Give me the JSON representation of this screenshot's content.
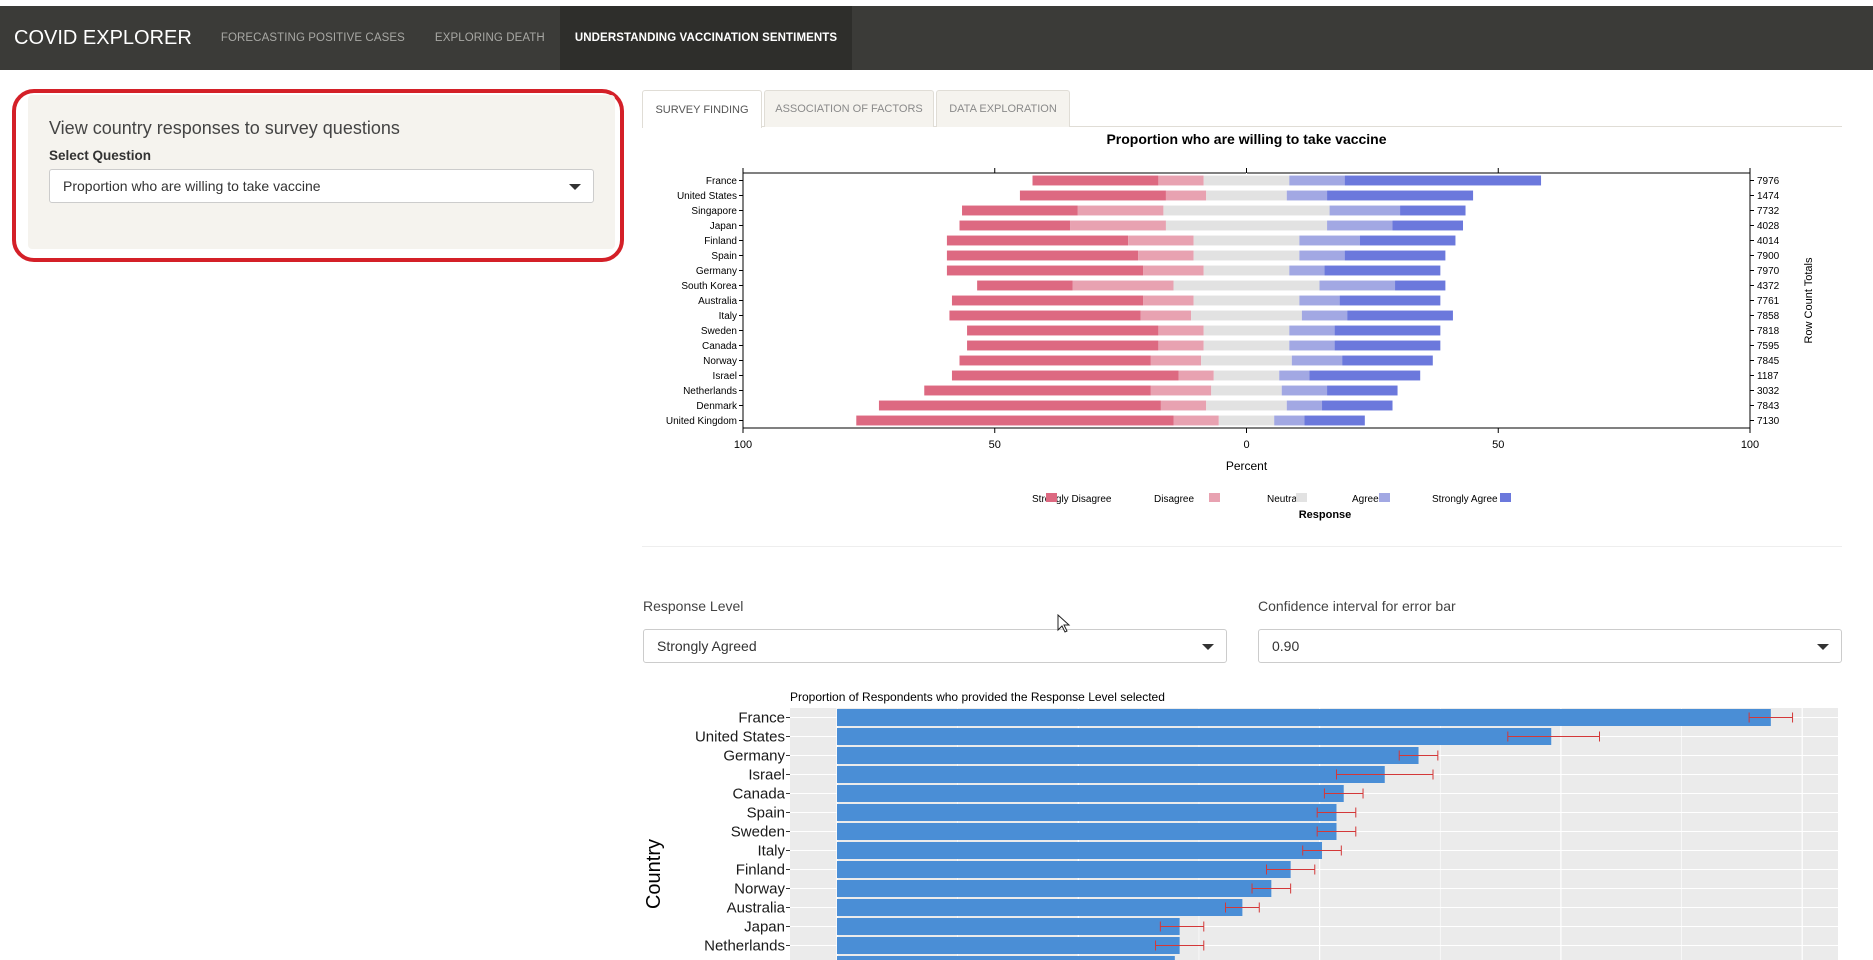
{
  "app": {
    "brand": "COVID EXPLORER",
    "nav": [
      {
        "label": "FORECASTING POSITIVE CASES"
      },
      {
        "label": "EXPLORING DEATH"
      },
      {
        "label": "UNDERSTANDING VACCINATION SENTIMENTS"
      }
    ]
  },
  "sidebar": {
    "heading": "View country responses to survey questions",
    "question_label": "Select Question",
    "question_value": "Proportion who are willing to take vaccine"
  },
  "tabs": [
    {
      "label": "SURVEY FINDING"
    },
    {
      "label": "ASSOCIATION OF FACTORS"
    },
    {
      "label": "DATA EXPLORATION"
    }
  ],
  "controls": {
    "response_level_label": "Response Level",
    "response_level_value": "Strongly Agreed",
    "ci_label": "Confidence interval for error bar",
    "ci_value": "0.90"
  },
  "colors": {
    "strongly_disagree": "#dd6981",
    "disagree": "#e8a2b1",
    "neutral": "#e2e2e2",
    "agree": "#a2a8e3",
    "strongly_agree": "#6b78dc",
    "bar_blue": "#4a8ed6",
    "error_red": "#d43838",
    "panel_gray": "#ebebeb",
    "highlight_red": "#d42028"
  },
  "chart_data": [
    {
      "type": "bar",
      "subtype": "diverging-stacked-horizontal",
      "title": "Proportion who are willing to take vaccine",
      "xlabel": "Percent",
      "right_axis_label": "Row Count Totals",
      "xlim": [
        -100,
        100
      ],
      "x_ticks": [
        -100,
        -50,
        0,
        50,
        100
      ],
      "x_tick_labels": [
        "100",
        "50",
        "0",
        "50",
        "100"
      ],
      "legend_title": "Response",
      "legend": [
        "Strongly Disagree",
        "Disagree",
        "Neutral",
        "Agree",
        "Strongly Agree"
      ],
      "legend_position": "bottom",
      "categories": [
        "France",
        "United States",
        "Singapore",
        "Japan",
        "Finland",
        "Spain",
        "Germany",
        "South Korea",
        "Australia",
        "Italy",
        "Sweden",
        "Canada",
        "Norway",
        "Israel",
        "Netherlands",
        "Denmark",
        "United Kingdom"
      ],
      "row_totals": [
        "7976",
        "1474",
        "7732",
        "4028",
        "4014",
        "7900",
        "7970",
        "4372",
        "7761",
        "7858",
        "7818",
        "7595",
        "7845",
        "1187",
        "3032",
        "7843",
        "7130"
      ],
      "series": [
        {
          "name": "Strongly Disagree",
          "values": [
            25,
            29,
            23,
            22,
            36,
            38,
            39,
            19,
            38,
            38,
            38,
            38,
            38,
            45,
            45,
            56,
            63
          ]
        },
        {
          "name": "Disagree",
          "values": [
            9,
            8,
            17,
            19,
            13,
            11,
            12,
            20,
            10,
            10,
            9,
            9,
            10,
            7,
            12,
            9,
            9
          ]
        },
        {
          "name": "Neutral",
          "values": [
            17,
            16,
            33,
            32,
            21,
            21,
            17,
            29,
            21,
            22,
            17,
            17,
            18,
            13,
            14,
            16,
            11
          ]
        },
        {
          "name": "Agree",
          "values": [
            11,
            8,
            14,
            13,
            12,
            9,
            7,
            15,
            8,
            9,
            9,
            9,
            10,
            6,
            9,
            7,
            6
          ]
        },
        {
          "name": "Strongly Agree",
          "values": [
            39,
            29,
            13,
            14,
            19,
            20,
            23,
            10,
            20,
            21,
            21,
            21,
            18,
            22,
            14,
            14,
            12
          ]
        }
      ]
    },
    {
      "type": "bar",
      "subtype": "horizontal-with-error-bars",
      "title": "Proportion of Respondents who provided the Response Level selected",
      "ylabel": "Country",
      "categories": [
        "France",
        "United States",
        "Germany",
        "Israel",
        "Canada",
        "Spain",
        "Sweden",
        "Italy",
        "Finland",
        "Norway",
        "Australia",
        "Japan",
        "Netherlands"
      ],
      "values": [
        0.387,
        0.296,
        0.241,
        0.227,
        0.21,
        0.207,
        0.207,
        0.201,
        0.188,
        0.18,
        0.168,
        0.142,
        0.142
      ],
      "err_low": [
        0.378,
        0.278,
        0.233,
        0.207,
        0.202,
        0.199,
        0.199,
        0.193,
        0.178,
        0.172,
        0.161,
        0.134,
        0.132
      ],
      "err_high": [
        0.396,
        0.316,
        0.249,
        0.247,
        0.218,
        0.215,
        0.215,
        0.209,
        0.198,
        0.188,
        0.175,
        0.152,
        0.152
      ]
    }
  ]
}
